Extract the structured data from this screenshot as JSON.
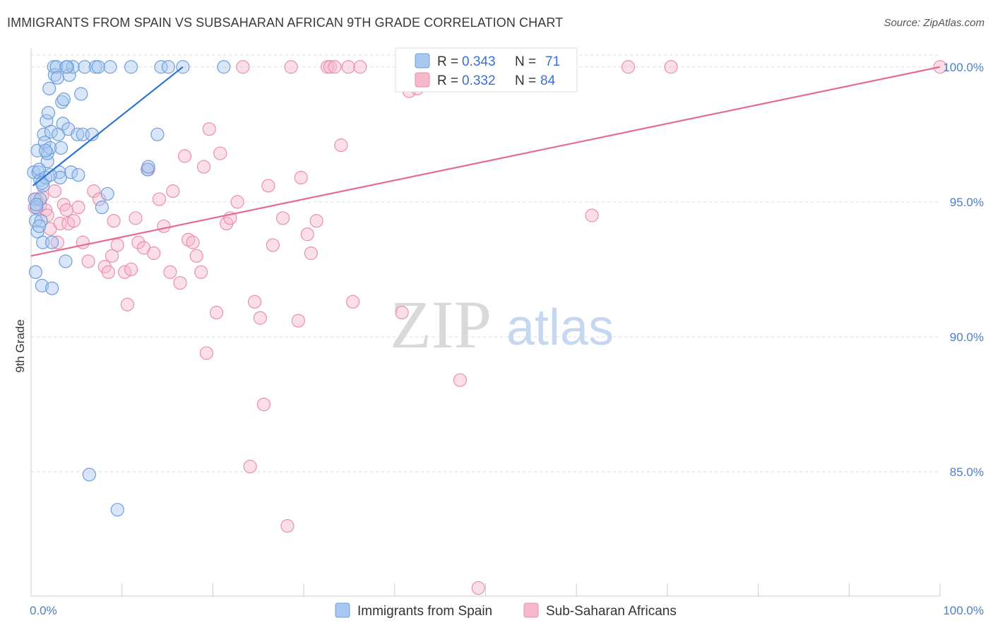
{
  "header": {
    "title": "IMMIGRANTS FROM SPAIN VS SUBSAHARAN AFRICAN 9TH GRADE CORRELATION CHART",
    "source": "Source: ZipAtlas.com"
  },
  "watermark": {
    "zip": "ZIP",
    "atlas": "atlas"
  },
  "legend_top": {
    "rows": [
      {
        "r_label": "R = ",
        "r_value": "0.343",
        "n_label": "N = ",
        "n_value": "71",
        "color": "#a9c8ef"
      },
      {
        "r_label": "R = ",
        "r_value": "0.332",
        "n_label": "N = ",
        "n_value": "84",
        "color": "#f6b8cb"
      }
    ]
  },
  "legend_bottom": {
    "items": [
      {
        "label": "Immigrants from Spain",
        "color": "#a9c8ef"
      },
      {
        "label": "Sub-Saharan Africans",
        "color": "#f6b8cb"
      }
    ]
  },
  "colors": {
    "blue_fill": "#a9c8ef",
    "blue_stroke": "#6d9fdc",
    "blue_line": "#2f74d0",
    "pink_fill": "#f6b8cb",
    "pink_stroke": "#ea8fae",
    "pink_line": "#e56b93",
    "grid": "#dddddd",
    "axis": "#cccccc"
  },
  "chart_data": {
    "type": "scatter",
    "title": "IMMIGRANTS FROM SPAIN VS SUBSAHARAN AFRICAN 9TH GRADE CORRELATION CHART",
    "xlabel": "",
    "ylabel": "9th Grade",
    "xlim": [
      0,
      100
    ],
    "ylim": [
      80.4,
      100.7
    ],
    "x_tick_labels": [
      "0.0%",
      "100.0%"
    ],
    "y_ticks": [
      85,
      90,
      95,
      100
    ],
    "y_tick_labels": [
      "85.0%",
      "90.0%",
      "95.0%",
      "100.0%"
    ],
    "grid": true,
    "series": [
      {
        "name": "Immigrants from Spain",
        "R": 0.343,
        "N": 71,
        "trend": {
          "x": [
            0.2,
            16.7
          ],
          "y": [
            95.6,
            100.0
          ]
        },
        "points": [
          [
            0.3,
            96.1
          ],
          [
            0.4,
            95.1
          ],
          [
            0.5,
            94.3
          ],
          [
            0.5,
            92.4
          ],
          [
            0.6,
            94.8
          ],
          [
            0.7,
            93.9
          ],
          [
            0.7,
            96.9
          ],
          [
            0.8,
            96.1
          ],
          [
            0.9,
            96.2
          ],
          [
            1.0,
            95.8
          ],
          [
            1.1,
            94.3
          ],
          [
            1.2,
            91.9
          ],
          [
            1.3,
            95.6
          ],
          [
            1.3,
            93.5
          ],
          [
            1.4,
            97.5
          ],
          [
            1.5,
            97.2
          ],
          [
            1.6,
            95.9
          ],
          [
            1.7,
            98.0
          ],
          [
            1.8,
            96.5
          ],
          [
            1.8,
            96.8
          ],
          [
            1.9,
            98.3
          ],
          [
            2.0,
            99.2
          ],
          [
            2.1,
            97.0
          ],
          [
            2.2,
            97.6
          ],
          [
            2.3,
            91.8
          ],
          [
            2.3,
            93.5
          ],
          [
            2.5,
            100.0
          ],
          [
            2.6,
            99.7
          ],
          [
            2.8,
            100.0
          ],
          [
            2.9,
            99.6
          ],
          [
            3.0,
            97.5
          ],
          [
            3.1,
            96.1
          ],
          [
            3.2,
            95.9
          ],
          [
            3.3,
            97.0
          ],
          [
            3.4,
            98.7
          ],
          [
            3.5,
            97.9
          ],
          [
            3.6,
            98.8
          ],
          [
            3.8,
            92.8
          ],
          [
            4.0,
            100.0
          ],
          [
            4.1,
            97.7
          ],
          [
            4.2,
            99.7
          ],
          [
            4.4,
            96.1
          ],
          [
            4.6,
            100.0
          ],
          [
            5.1,
            97.5
          ],
          [
            5.2,
            96.0
          ],
          [
            5.5,
            99.0
          ],
          [
            5.7,
            97.5
          ],
          [
            5.9,
            100.0
          ],
          [
            6.4,
            84.9
          ],
          [
            6.7,
            97.5
          ],
          [
            7.1,
            100.0
          ],
          [
            7.4,
            100.0
          ],
          [
            7.8,
            94.8
          ],
          [
            8.4,
            95.3
          ],
          [
            8.7,
            100.0
          ],
          [
            9.5,
            83.6
          ],
          [
            11.0,
            100.0
          ],
          [
            12.8,
            96.2
          ],
          [
            12.9,
            96.3
          ],
          [
            13.9,
            97.5
          ],
          [
            14.3,
            100.0
          ],
          [
            15.1,
            100.0
          ],
          [
            16.7,
            100.0
          ],
          [
            21.2,
            100.0
          ],
          [
            1.0,
            95.1
          ],
          [
            0.9,
            94.1
          ],
          [
            1.2,
            95.7
          ],
          [
            1.6,
            96.9
          ],
          [
            2.1,
            96.0
          ],
          [
            0.6,
            94.9
          ],
          [
            3.9,
            100.0
          ]
        ]
      },
      {
        "name": "Sub-Saharan Africans",
        "R": 0.332,
        "N": 84,
        "trend": {
          "x": [
            0.0,
            100.0
          ],
          "y": [
            93.0,
            100.0
          ]
        },
        "points": [
          [
            0.6,
            95.1
          ],
          [
            1.0,
            94.9
          ],
          [
            1.2,
            95.2
          ],
          [
            1.6,
            94.7
          ],
          [
            2.1,
            94.0
          ],
          [
            2.6,
            95.4
          ],
          [
            3.2,
            94.2
          ],
          [
            3.6,
            94.9
          ],
          [
            4.1,
            94.2
          ],
          [
            4.7,
            94.3
          ],
          [
            5.2,
            94.8
          ],
          [
            5.7,
            93.5
          ],
          [
            6.3,
            92.8
          ],
          [
            6.9,
            95.4
          ],
          [
            7.5,
            95.1
          ],
          [
            8.1,
            92.6
          ],
          [
            8.5,
            92.4
          ],
          [
            9.1,
            94.3
          ],
          [
            9.5,
            93.4
          ],
          [
            10.3,
            92.4
          ],
          [
            10.6,
            91.2
          ],
          [
            11.0,
            92.5
          ],
          [
            11.5,
            94.4
          ],
          [
            11.8,
            93.5
          ],
          [
            12.4,
            93.3
          ],
          [
            12.9,
            96.2
          ],
          [
            13.5,
            93.1
          ],
          [
            14.1,
            95.1
          ],
          [
            14.6,
            94.1
          ],
          [
            15.3,
            92.4
          ],
          [
            15.6,
            95.4
          ],
          [
            16.4,
            92.0
          ],
          [
            16.9,
            96.7
          ],
          [
            17.3,
            93.6
          ],
          [
            17.8,
            93.5
          ],
          [
            18.2,
            93.0
          ],
          [
            18.7,
            92.4
          ],
          [
            19.3,
            89.4
          ],
          [
            19.6,
            97.7
          ],
          [
            20.4,
            90.9
          ],
          [
            20.8,
            96.8
          ],
          [
            21.5,
            94.2
          ],
          [
            21.9,
            94.4
          ],
          [
            22.7,
            95.0
          ],
          [
            23.3,
            100.0
          ],
          [
            24.1,
            85.2
          ],
          [
            24.6,
            91.3
          ],
          [
            25.2,
            90.7
          ],
          [
            25.6,
            87.5
          ],
          [
            26.1,
            95.6
          ],
          [
            26.6,
            93.4
          ],
          [
            27.7,
            94.4
          ],
          [
            28.2,
            83.0
          ],
          [
            28.6,
            100.0
          ],
          [
            29.4,
            90.6
          ],
          [
            29.7,
            95.9
          ],
          [
            30.4,
            93.8
          ],
          [
            30.8,
            93.1
          ],
          [
            31.4,
            94.3
          ],
          [
            32.6,
            100.0
          ],
          [
            32.9,
            100.0
          ],
          [
            33.4,
            100.0
          ],
          [
            34.1,
            97.1
          ],
          [
            34.9,
            100.0
          ],
          [
            35.4,
            91.3
          ],
          [
            36.2,
            100.0
          ],
          [
            40.8,
            90.9
          ],
          [
            41.6,
            99.1
          ],
          [
            47.2,
            88.4
          ],
          [
            49.2,
            80.7
          ],
          [
            53.8,
            100.0
          ],
          [
            61.7,
            94.5
          ],
          [
            65.7,
            100.0
          ],
          [
            70.4,
            100.0
          ],
          [
            100.0,
            100.0
          ],
          [
            58.5,
            100.0
          ],
          [
            42.5,
            99.2
          ],
          [
            45.0,
            100.0
          ],
          [
            1.8,
            94.5
          ],
          [
            0.4,
            94.8
          ],
          [
            3.9,
            94.7
          ],
          [
            8.9,
            93.0
          ],
          [
            19.0,
            96.3
          ],
          [
            2.9,
            93.5
          ]
        ]
      }
    ]
  }
}
